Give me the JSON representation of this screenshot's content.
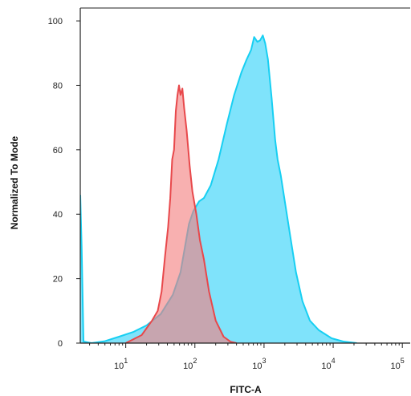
{
  "chart_data": {
    "type": "area",
    "title": "",
    "xlabel": "FITC-A",
    "ylabel": "Normalized To Mode",
    "x_scale": "log",
    "xlim": [
      2.2,
      130000
    ],
    "ylim": [
      0,
      104
    ],
    "y_ticks": [
      0,
      20,
      40,
      60,
      80,
      100
    ],
    "x_ticks": [
      {
        "value": 10,
        "base": "10",
        "exp": "1"
      },
      {
        "value": 100,
        "base": "10",
        "exp": "2"
      },
      {
        "value": 1000,
        "base": "10",
        "exp": "3"
      },
      {
        "value": 10000,
        "base": "10",
        "exp": "4"
      },
      {
        "value": 100000,
        "base": "10",
        "exp": "5"
      }
    ],
    "grid": false,
    "legend": "none",
    "series": [
      {
        "color": "#17cff2",
        "fill": "#7fe3fb",
        "points": [
          [
            2.2,
            46
          ],
          [
            2.3,
            30
          ],
          [
            2.45,
            0.5
          ],
          [
            3.2,
            0
          ],
          [
            5,
            0.6
          ],
          [
            8,
            2
          ],
          [
            13,
            3.5
          ],
          [
            20,
            5.5
          ],
          [
            32,
            9
          ],
          [
            48,
            15
          ],
          [
            62,
            22
          ],
          [
            72,
            30
          ],
          [
            82,
            37
          ],
          [
            95,
            41
          ],
          [
            115,
            44
          ],
          [
            135,
            45
          ],
          [
            170,
            49
          ],
          [
            220,
            57
          ],
          [
            290,
            68
          ],
          [
            370,
            77
          ],
          [
            470,
            84
          ],
          [
            560,
            88
          ],
          [
            650,
            91
          ],
          [
            720,
            95
          ],
          [
            800,
            93.5
          ],
          [
            880,
            94
          ],
          [
            960,
            95.5
          ],
          [
            1040,
            93
          ],
          [
            1140,
            88
          ],
          [
            1290,
            76
          ],
          [
            1450,
            63
          ],
          [
            1570,
            57
          ],
          [
            1750,
            52
          ],
          [
            2000,
            44
          ],
          [
            2400,
            33
          ],
          [
            2900,
            22
          ],
          [
            3600,
            13
          ],
          [
            4600,
            7
          ],
          [
            6200,
            4
          ],
          [
            9500,
            1.5
          ],
          [
            14000,
            0.5
          ],
          [
            22000,
            0
          ]
        ]
      },
      {
        "color": "#e8484b",
        "fill": "#f47f80",
        "points": [
          [
            10,
            0
          ],
          [
            17,
            2.5
          ],
          [
            24,
            7
          ],
          [
            29,
            10
          ],
          [
            33,
            16
          ],
          [
            37,
            27
          ],
          [
            41,
            36
          ],
          [
            44,
            45
          ],
          [
            47,
            57
          ],
          [
            50,
            60
          ],
          [
            53,
            72
          ],
          [
            56,
            77
          ],
          [
            59,
            80
          ],
          [
            62,
            77
          ],
          [
            66,
            79
          ],
          [
            70,
            73
          ],
          [
            76,
            66
          ],
          [
            84,
            55
          ],
          [
            92,
            47
          ],
          [
            105,
            40
          ],
          [
            118,
            32
          ],
          [
            135,
            26
          ],
          [
            160,
            16
          ],
          [
            200,
            7
          ],
          [
            260,
            2
          ],
          [
            330,
            0.4
          ],
          [
            400,
            0
          ]
        ]
      }
    ]
  }
}
